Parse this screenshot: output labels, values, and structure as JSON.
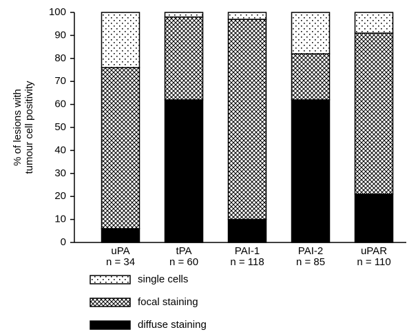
{
  "chart_data": {
    "type": "stacked_bar",
    "ylabel": [
      "% of lesions with",
      "tumour cell positivity"
    ],
    "categories": [
      "uPA",
      "tPA",
      "PAI-1",
      "PAI-2",
      "uPAR"
    ],
    "sample_sizes": [
      "n = 34",
      "n = 60",
      "n = 118",
      "n = 85",
      "n = 110"
    ],
    "series": [
      {
        "name": "diffuse staining",
        "color": "#000000",
        "pattern": "solid",
        "values": [
          6,
          62,
          10,
          62,
          21
        ]
      },
      {
        "name": "focal staining",
        "color": "#000000",
        "pattern": "crosshatch",
        "values": [
          70,
          36,
          87,
          20,
          70
        ]
      },
      {
        "name": "single cells",
        "color": "#000000",
        "pattern": "dots",
        "values": [
          24,
          2,
          3,
          18,
          9
        ]
      }
    ],
    "ylim": [
      0,
      100
    ],
    "yticks": [
      0,
      10,
      20,
      30,
      40,
      50,
      60,
      70,
      80,
      90,
      100
    ],
    "grid": false
  }
}
